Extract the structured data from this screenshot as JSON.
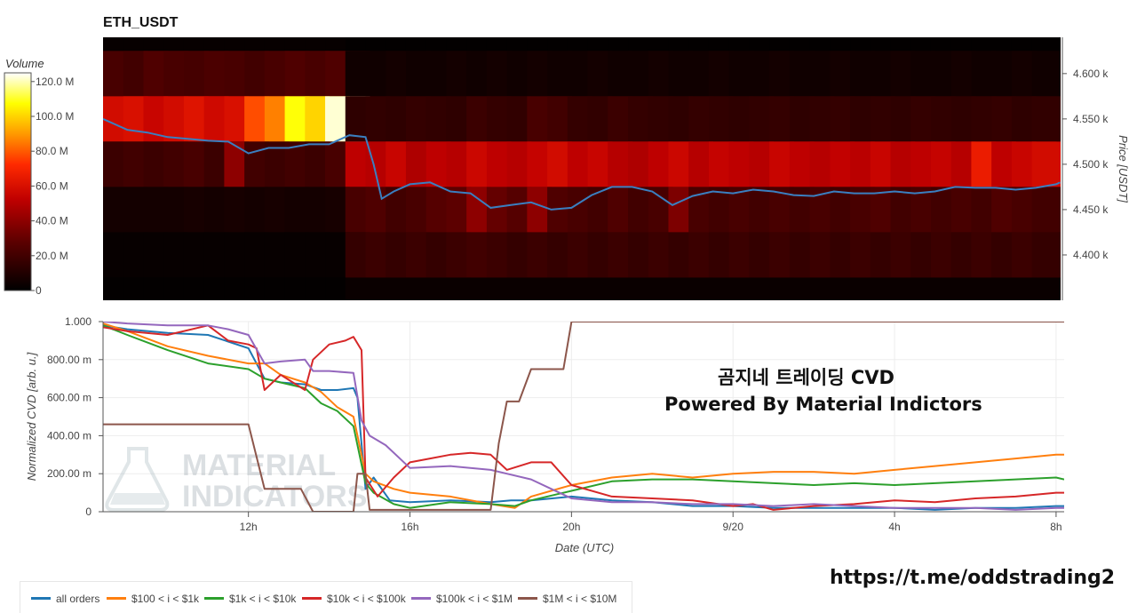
{
  "heatmap": {
    "title": "ETH_USDT",
    "colorbar_label": "Volume",
    "colorbar_ticks": [
      "120.0 M",
      "100.0 M",
      "80.0 M",
      "60.0 M",
      "40.0 M",
      "20.0 M",
      "0"
    ],
    "price_axis_label": "Price [USDT]",
    "price_ticks": [
      "4.600 k",
      "4.550 k",
      "4.500 k",
      "4.450 k",
      "4.400 k"
    ],
    "colormap": [
      "#000000",
      "#8b0000",
      "#ff2000",
      "#ff9900",
      "#ffff00",
      "#ffffff"
    ],
    "price_line_color": "#3a7fc0"
  },
  "cvd": {
    "ylabel": "Normalized CVD [arb. u.]",
    "xlabel": "Date (UTC)",
    "y_ticks": [
      "1.000",
      "800.00 m",
      "600.00 m",
      "400.00 m",
      "200.00 m",
      "0"
    ],
    "x_ticks": [
      "12h",
      "16h",
      "20h",
      "9/20",
      "4h",
      "8h"
    ]
  },
  "watermark": {
    "line1": "MATERIAL",
    "line2": "INDICATORS"
  },
  "overlay": {
    "line1": "곰지네 트레이딩 CVD",
    "line2": "Powered By Material Indictors",
    "link": "https://t.me/oddstrading2"
  },
  "legend": [
    {
      "name": "all orders",
      "color": "#1f77b4"
    },
    {
      "name": "$100 < i < $1k",
      "color": "#ff7f0e"
    },
    {
      "name": "$1k < i < $10k",
      "color": "#2ca02c"
    },
    {
      "name": "$10k < i < $100k",
      "color": "#d62728"
    },
    {
      "name": "$100k < i < $1M",
      "color": "#9467bd"
    },
    {
      "name": "$1M < i < $10M",
      "color": "#8c564b"
    }
  ],
  "chart_data": [
    {
      "type": "heatmap",
      "title": "ETH_USDT",
      "xlabel": "Date (UTC)",
      "ylabel": "Price [USDT]",
      "colorbar": "Volume",
      "zlim": [
        0,
        125000000
      ],
      "ylim": [
        4350,
        4640
      ],
      "price_bands": [
        {
          "low": 4625,
          "high": 4640
        },
        {
          "low": 4575,
          "high": 4625
        },
        {
          "low": 4525,
          "high": 4575
        },
        {
          "low": 4475,
          "high": 4525
        },
        {
          "low": 4425,
          "high": 4475
        },
        {
          "low": 4375,
          "high": 4425
        },
        {
          "low": 4350,
          "high": 4375
        }
      ],
      "x": [
        9.0,
        9.5,
        10.0,
        10.5,
        11.0,
        11.5,
        12.0,
        12.5,
        13.0,
        13.5,
        14.0,
        14.5,
        15.0,
        15.5,
        16.0,
        16.5,
        17.0,
        17.5,
        18.0,
        18.5,
        19.0,
        19.5,
        20.0,
        20.5,
        21.0,
        21.5,
        22.0,
        22.5,
        23.0,
        23.5,
        24.0,
        24.5,
        25.0,
        25.5,
        26.0,
        26.5,
        27.0,
        27.5,
        28.0,
        28.5,
        29.0,
        29.5,
        30.0,
        30.5,
        31.0,
        31.5,
        32.0
      ],
      "volume_by_band_millions": {
        "4625-4640": [
          2,
          2,
          2,
          2,
          2,
          2,
          2,
          2,
          2,
          2,
          2,
          2,
          1,
          1,
          1,
          1,
          1,
          1,
          1,
          1,
          1,
          1,
          1,
          1,
          1,
          1,
          1,
          1,
          1,
          1,
          1,
          1,
          1,
          1,
          1,
          1,
          1,
          1,
          1,
          1,
          1,
          1,
          1,
          1,
          1,
          1,
          1
        ],
        "4575-4625": [
          22,
          20,
          24,
          22,
          21,
          23,
          22,
          20,
          22,
          24,
          22,
          24,
          5,
          5,
          6,
          5,
          5,
          6,
          5,
          6,
          5,
          6,
          5,
          5,
          6,
          5,
          5,
          6,
          5,
          5,
          6,
          5,
          5,
          6,
          5,
          5,
          6,
          5,
          5,
          6,
          5,
          5,
          6,
          5,
          5,
          6,
          5
        ],
        "4525-4575": [
          58,
          60,
          55,
          58,
          62,
          57,
          60,
          78,
          86,
          108,
          100,
          122,
          14,
          15,
          14,
          16,
          15,
          14,
          18,
          16,
          15,
          22,
          20,
          16,
          15,
          18,
          16,
          15,
          14,
          16,
          15,
          14,
          15,
          16,
          14,
          15,
          16,
          14,
          15,
          14,
          16,
          15,
          14,
          15,
          16,
          14,
          15
        ],
        "4475-4525": [
          18,
          20,
          18,
          20,
          22,
          18,
          40,
          20,
          18,
          20,
          18,
          22,
          52,
          50,
          55,
          48,
          52,
          50,
          56,
          52,
          50,
          54,
          58,
          52,
          55,
          50,
          48,
          52,
          56,
          50,
          54,
          52,
          50,
          55,
          52,
          50,
          53,
          51,
          55,
          50,
          52,
          54,
          50,
          66,
          52,
          55,
          58
        ],
        "4425-4475": [
          6,
          6,
          6,
          6,
          7,
          6,
          7,
          6,
          7,
          6,
          6,
          7,
          22,
          24,
          20,
          22,
          26,
          28,
          40,
          30,
          26,
          40,
          24,
          22,
          20,
          24,
          20,
          22,
          36,
          22,
          20,
          22,
          20,
          22,
          20,
          22,
          20,
          22,
          24,
          20,
          22,
          20,
          22,
          20,
          24,
          22,
          20
        ],
        "4375-4425": [
          2,
          2,
          2,
          2,
          2,
          2,
          2,
          2,
          2,
          2,
          2,
          2,
          16,
          18,
          16,
          18,
          16,
          18,
          20,
          18,
          16,
          18,
          16,
          18,
          16,
          18,
          16,
          18,
          16,
          18,
          16,
          18,
          16,
          18,
          16,
          18,
          16,
          18,
          16,
          18,
          16,
          18,
          16,
          18,
          16,
          18,
          16
        ],
        "4350-4375": [
          1,
          1,
          1,
          1,
          1,
          1,
          1,
          1,
          1,
          1,
          1,
          1,
          3,
          3,
          3,
          3,
          3,
          3,
          3,
          3,
          3,
          3,
          3,
          3,
          3,
          3,
          3,
          3,
          3,
          3,
          3,
          3,
          3,
          3,
          3,
          3,
          3,
          3,
          3,
          3,
          3,
          3,
          3,
          3,
          3,
          3,
          3
        ]
      },
      "price_line": {
        "name": "Price",
        "x": [
          8.4,
          9.0,
          9.5,
          10.0,
          10.5,
          11.0,
          11.5,
          12.0,
          12.5,
          13.0,
          13.5,
          14.0,
          14.5,
          14.9,
          15.1,
          15.3,
          15.6,
          16.0,
          16.5,
          17.0,
          17.5,
          18.0,
          18.5,
          19.0,
          19.5,
          20.0,
          20.5,
          21.0,
          21.5,
          22.0,
          22.5,
          23.0,
          23.5,
          24.0,
          24.5,
          25.0,
          25.5,
          26.0,
          26.5,
          27.0,
          27.5,
          28.0,
          28.5,
          29.0,
          29.5,
          30.0,
          30.5,
          31.0,
          31.5,
          32.0,
          32.1
        ],
        "y": [
          4550,
          4538,
          4535,
          4530,
          4528,
          4526,
          4525,
          4512,
          4518,
          4518,
          4522,
          4522,
          4532,
          4530,
          4500,
          4462,
          4470,
          4478,
          4480,
          4470,
          4468,
          4452,
          4455,
          4458,
          4450,
          4452,
          4466,
          4475,
          4475,
          4470,
          4455,
          4465,
          4470,
          4468,
          4472,
          4470,
          4466,
          4465,
          4470,
          4468,
          4468,
          4470,
          4468,
          4470,
          4475,
          4474,
          4474,
          4472,
          4474,
          4478,
          4480
        ]
      }
    },
    {
      "type": "line",
      "xlabel": "Date (UTC)",
      "ylabel": "Normalized CVD [arb. u.]",
      "ylim": [
        0,
        1
      ],
      "xlim": [
        8.4,
        32.2
      ],
      "x_units": "hours since 9/19 00:00 UTC",
      "series": [
        {
          "name": "all orders",
          "x": [
            8.4,
            9.0,
            10.0,
            11.0,
            12.0,
            12.4,
            12.8,
            13.4,
            13.8,
            14.2,
            14.6,
            14.7,
            14.9,
            15.1,
            15.5,
            16.0,
            17.0,
            18.0,
            18.5,
            19.0,
            20.0,
            21.0,
            22.0,
            23.0,
            24.0,
            25.0,
            26.0,
            27.0,
            28.0,
            29.0,
            30.0,
            31.0,
            32.0,
            32.2
          ],
          "y": [
            0.98,
            0.96,
            0.94,
            0.93,
            0.86,
            0.7,
            0.68,
            0.67,
            0.64,
            0.64,
            0.65,
            0.6,
            0.12,
            0.18,
            0.06,
            0.05,
            0.06,
            0.05,
            0.06,
            0.06,
            0.08,
            0.06,
            0.05,
            0.03,
            0.03,
            0.02,
            0.02,
            0.02,
            0.02,
            0.01,
            0.02,
            0.02,
            0.03,
            0.03
          ]
        },
        {
          "name": "$100 < i < $1k",
          "x": [
            8.4,
            9.0,
            10.0,
            11.0,
            12.0,
            12.4,
            12.8,
            13.4,
            13.8,
            14.2,
            14.6,
            14.9,
            15.1,
            15.6,
            16.0,
            17.0,
            18.0,
            18.6,
            19.0,
            20.0,
            21.0,
            22.0,
            23.0,
            24.0,
            25.0,
            26.0,
            27.0,
            28.0,
            29.0,
            30.0,
            31.0,
            32.0,
            32.2
          ],
          "y": [
            0.99,
            0.95,
            0.87,
            0.82,
            0.78,
            0.78,
            0.72,
            0.68,
            0.63,
            0.55,
            0.5,
            0.2,
            0.16,
            0.12,
            0.1,
            0.08,
            0.04,
            0.02,
            0.08,
            0.14,
            0.18,
            0.2,
            0.18,
            0.2,
            0.21,
            0.21,
            0.2,
            0.22,
            0.24,
            0.26,
            0.28,
            0.3,
            0.3
          ]
        },
        {
          "name": "$1k < i < $10k",
          "x": [
            8.4,
            9.0,
            10.0,
            11.0,
            12.0,
            12.4,
            12.8,
            13.4,
            13.8,
            14.2,
            14.6,
            14.9,
            15.1,
            15.6,
            16.0,
            17.0,
            18.0,
            18.6,
            19.0,
            20.0,
            21.0,
            22.0,
            23.0,
            24.0,
            25.0,
            26.0,
            27.0,
            28.0,
            29.0,
            30.0,
            31.0,
            32.0,
            32.2
          ],
          "y": [
            0.98,
            0.93,
            0.85,
            0.78,
            0.75,
            0.7,
            0.68,
            0.65,
            0.57,
            0.53,
            0.45,
            0.15,
            0.1,
            0.04,
            0.02,
            0.05,
            0.04,
            0.03,
            0.06,
            0.11,
            0.16,
            0.17,
            0.17,
            0.16,
            0.15,
            0.14,
            0.15,
            0.14,
            0.15,
            0.16,
            0.17,
            0.18,
            0.17
          ]
        },
        {
          "name": "$10k < i < $100k",
          "x": [
            8.4,
            9.0,
            10.0,
            11.0,
            11.5,
            12.0,
            12.2,
            12.4,
            12.8,
            13.4,
            13.6,
            14.0,
            14.4,
            14.6,
            14.8,
            14.9,
            15.2,
            15.6,
            16.0,
            16.5,
            17.0,
            17.5,
            18.0,
            18.4,
            19.0,
            19.5,
            20.0,
            21.0,
            22.0,
            23.0,
            24.0,
            24.5,
            25.0,
            26.0,
            27.0,
            28.0,
            29.0,
            30.0,
            31.0,
            32.0,
            32.2
          ],
          "y": [
            0.97,
            0.95,
            0.93,
            0.98,
            0.9,
            0.88,
            0.86,
            0.64,
            0.72,
            0.64,
            0.8,
            0.88,
            0.9,
            0.92,
            0.85,
            0.18,
            0.08,
            0.18,
            0.26,
            0.28,
            0.3,
            0.31,
            0.3,
            0.22,
            0.26,
            0.26,
            0.14,
            0.08,
            0.07,
            0.06,
            0.03,
            0.04,
            0.01,
            0.03,
            0.04,
            0.06,
            0.05,
            0.07,
            0.08,
            0.1,
            0.1
          ]
        },
        {
          "name": "$100k < i < $1M",
          "x": [
            8.4,
            9.0,
            10.0,
            11.0,
            11.5,
            12.0,
            12.4,
            12.8,
            13.4,
            13.6,
            14.0,
            14.6,
            14.8,
            15.0,
            15.4,
            16.0,
            17.0,
            18.0,
            18.4,
            19.0,
            19.5,
            20.0,
            21.0,
            22.0,
            23.0,
            24.0,
            25.0,
            26.0,
            27.0,
            28.0,
            29.0,
            30.0,
            31.0,
            32.0,
            32.2
          ],
          "y": [
            1.0,
            0.99,
            0.98,
            0.98,
            0.96,
            0.93,
            0.78,
            0.79,
            0.8,
            0.74,
            0.74,
            0.73,
            0.48,
            0.4,
            0.35,
            0.23,
            0.24,
            0.22,
            0.2,
            0.17,
            0.12,
            0.07,
            0.05,
            0.05,
            0.04,
            0.04,
            0.03,
            0.04,
            0.03,
            0.02,
            0.02,
            0.02,
            0.01,
            0.02,
            0.02
          ]
        },
        {
          "name": "$1M < i < $10M",
          "x": [
            8.4,
            11.6,
            12.0,
            12.4,
            13.3,
            13.6,
            14.4,
            14.6,
            14.7,
            14.9,
            15.0,
            18.0,
            18.2,
            18.4,
            18.7,
            19.0,
            19.4,
            19.6,
            19.8,
            20.0,
            32.2
          ],
          "y": [
            0.46,
            0.46,
            0.46,
            0.12,
            0.12,
            0.0,
            0.0,
            0.0,
            0.2,
            0.2,
            0.01,
            0.01,
            0.36,
            0.58,
            0.58,
            0.75,
            0.75,
            0.75,
            0.75,
            1.0,
            1.0
          ]
        }
      ]
    }
  ]
}
